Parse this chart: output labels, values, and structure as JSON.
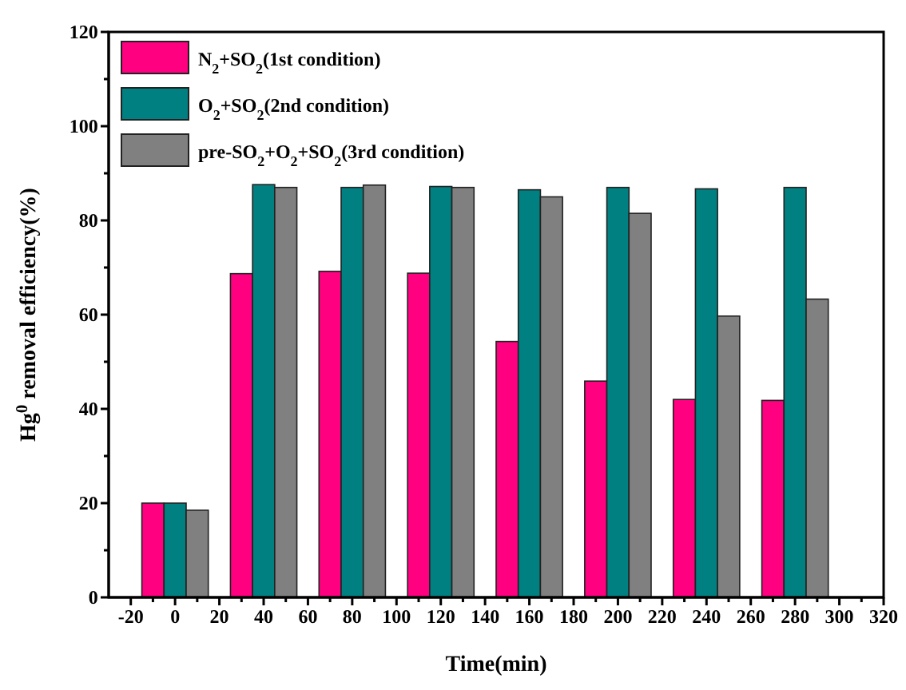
{
  "chart_data": {
    "type": "bar",
    "xlabel": "Time(min)",
    "ylabel": "Hg$^{0}$ removal efficiency(%)",
    "x": [
      0,
      40,
      80,
      120,
      160,
      200,
      240,
      280
    ],
    "series": [
      {
        "name": "N$_{2}$+SO$_{2}$(1st condition)",
        "color": "#ff0080",
        "values": [
          20,
          68.7,
          69.2,
          68.8,
          54.3,
          45.9,
          42,
          41.8
        ]
      },
      {
        "name": "O$_{2}$+SO$_{2}$(2nd condition)",
        "color": "#008080",
        "values": [
          20,
          87.6,
          87,
          87.2,
          86.5,
          87,
          86.7,
          87
        ]
      },
      {
        "name": "pre-SO$_{2}$+O$_{2}$+SO$_{2}$(3rd condition)",
        "color": "#808080",
        "values": [
          18.5,
          87,
          87.5,
          87,
          85,
          81.5,
          59.7,
          63.3
        ]
      }
    ],
    "xlim": [
      -30,
      320
    ],
    "xticks": [
      -20,
      {
        "value": -10,
        "label": null
      },
      0,
      {
        "value": 10,
        "label": null
      },
      20,
      {
        "value": 30,
        "label": null
      },
      40,
      {
        "value": 50,
        "label": null
      },
      60,
      {
        "value": 70,
        "label": null
      },
      80,
      {
        "value": 90,
        "label": null
      },
      100,
      {
        "value": 110,
        "label": null
      },
      120,
      {
        "value": 130,
        "label": null
      },
      140,
      {
        "value": 150,
        "label": null
      },
      160,
      {
        "value": 170,
        "label": null
      },
      180,
      {
        "value": 190,
        "label": null
      },
      200,
      {
        "value": 210,
        "label": null
      },
      220,
      {
        "value": 230,
        "label": null
      },
      240,
      {
        "value": 250,
        "label": null
      },
      260,
      {
        "value": 270,
        "label": null
      },
      280,
      {
        "value": 290,
        "label": null
      },
      300,
      {
        "value": 310,
        "label": null
      },
      320
    ],
    "ylim": [
      0,
      120
    ],
    "yticks": [
      0,
      {
        "value": 10,
        "label": null
      },
      20,
      {
        "value": 30,
        "label": null
      },
      40,
      {
        "value": 50,
        "label": null
      },
      60,
      {
        "value": 70,
        "label": null
      },
      80,
      {
        "value": 90,
        "label": null
      },
      100,
      {
        "value": 110,
        "label": null
      },
      120
    ],
    "legend": "top left",
    "grid": false
  }
}
